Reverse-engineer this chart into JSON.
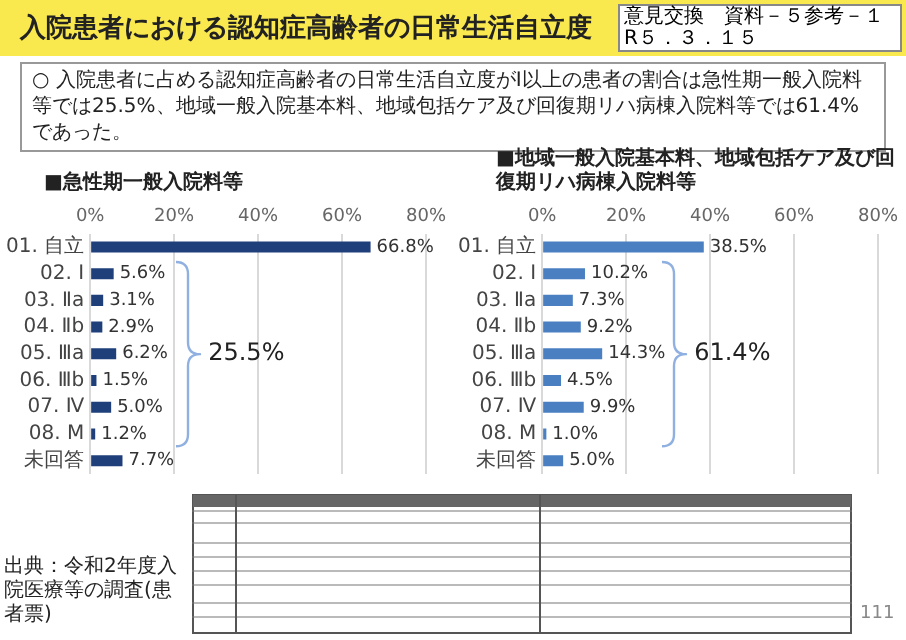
{
  "chart_data": [
    {
      "type": "other",
      "title": "入院患者における認知症高齢者の日常生活自立度",
      "subtitle": "○ 入院患者に占める認知症高齢者の日常生活自立度がⅠ以上の患者の割合は急性期一般入院料等では25.5%、地域一般入院基本料、地域包括ケア及び回復期リハ病棟入院料等では61.4%であった。",
      "annotations": [
        "意見交換　資料－５参考－１",
        "R５．３．１５",
        "出典：令和2年度入院医療等の調査(患者票)",
        "111"
      ]
    },
    {
      "type": "bar",
      "orientation": "horizontal",
      "title": "■急性期一般入院料等",
      "categories": [
        "01. 自立",
        "02. Ⅰ",
        "03. Ⅱa",
        "04. Ⅱb",
        "05. Ⅲa",
        "06. Ⅲb",
        "07. Ⅳ",
        "08. M",
        "未回答"
      ],
      "values": [
        66.8,
        5.6,
        3.1,
        2.9,
        6.2,
        1.5,
        5.0,
        1.2,
        7.7
      ],
      "value_labels": [
        "66.8%",
        "5.6%",
        "3.1%",
        "2.9%",
        "6.2%",
        "1.5%",
        "5.0%",
        "1.2%",
        "7.7%"
      ],
      "color": "#1f3f7a",
      "xlim": [
        0,
        80
      ],
      "xticks": [
        {
          "value": 0,
          "label": "0%"
        },
        {
          "value": 20,
          "label": "20%"
        },
        {
          "value": 40,
          "label": "40%"
        },
        {
          "value": 60,
          "label": "60%"
        },
        {
          "value": 80,
          "label": "80%"
        }
      ],
      "grid": "x",
      "annotations": [
        "25.5%"
      ]
    },
    {
      "type": "bar",
      "orientation": "horizontal",
      "title": "■地域一般入院基本料、地域包括ケア及び回復期リハ病棟入院料等",
      "categories": [
        "01. 自立",
        "02. Ⅰ",
        "03. Ⅱa",
        "04. Ⅱb",
        "05. Ⅲa",
        "06. Ⅲb",
        "07. Ⅳ",
        "08. M",
        "未回答"
      ],
      "values": [
        38.5,
        10.2,
        7.3,
        9.2,
        14.3,
        4.5,
        9.9,
        1.0,
        5.0
      ],
      "value_labels": [
        "38.5%",
        "10.2%",
        "7.3%",
        "9.2%",
        "14.3%",
        "4.5%",
        "9.9%",
        "1.0%",
        "5.0%"
      ],
      "color": "#4a7fc1",
      "xlim": [
        0,
        80
      ],
      "xticks": [
        {
          "value": 0,
          "label": "0%"
        },
        {
          "value": 20,
          "label": "20%"
        },
        {
          "value": 40,
          "label": "40%"
        },
        {
          "value": 60,
          "label": "60%"
        },
        {
          "value": 80,
          "label": "80%"
        }
      ],
      "grid": "x",
      "annotations": [
        "61.4%"
      ]
    }
  ]
}
